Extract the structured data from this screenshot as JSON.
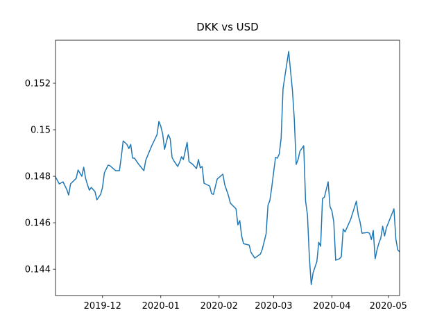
{
  "chart_data": {
    "type": "line",
    "title": "DKK vs USD",
    "x": [
      "2019-11-06",
      "2019-11-08",
      "2019-11-10",
      "2019-11-12",
      "2019-11-13",
      "2019-11-14",
      "2019-11-17",
      "2019-11-18",
      "2019-11-20",
      "2019-11-21",
      "2019-11-22",
      "2019-11-23",
      "2019-11-24",
      "2019-11-25",
      "2019-11-27",
      "2019-11-28",
      "2019-11-30",
      "2019-12-01",
      "2019-12-02",
      "2019-12-04",
      "2019-12-05",
      "2019-12-08",
      "2019-12-10",
      "2019-12-11",
      "2019-12-12",
      "2019-12-14",
      "2019-12-15",
      "2019-12-16",
      "2019-12-17",
      "2019-12-18",
      "2019-12-20",
      "2019-12-23",
      "2019-12-24",
      "2019-12-27",
      "2019-12-30",
      "2019-12-31",
      "2020-01-01",
      "2020-01-02",
      "2020-01-03",
      "2020-01-04",
      "2020-01-05",
      "2020-01-06",
      "2020-01-07",
      "2020-01-08",
      "2020-01-10",
      "2020-01-11",
      "2020-01-12",
      "2020-01-13",
      "2020-01-15",
      "2020-01-16",
      "2020-01-18",
      "2020-01-20",
      "2020-01-21",
      "2020-01-22",
      "2020-01-23",
      "2020-01-24",
      "2020-01-27",
      "2020-01-28",
      "2020-01-29",
      "2020-01-31",
      "2020-02-03",
      "2020-02-04",
      "2020-02-06",
      "2020-02-07",
      "2020-02-10",
      "2020-02-11",
      "2020-02-12",
      "2020-02-13",
      "2020-02-14",
      "2020-02-17",
      "2020-02-18",
      "2020-02-20",
      "2020-02-23",
      "2020-02-24",
      "2020-02-26",
      "2020-02-27",
      "2020-02-28",
      "2020-02-29",
      "2020-03-02",
      "2020-03-03",
      "2020-03-04",
      "2020-03-05",
      "2020-03-06",
      "2020-03-07",
      "2020-03-09",
      "2020-03-11",
      "2020-03-12",
      "2020-03-13",
      "2020-03-14",
      "2020-03-15",
      "2020-03-17",
      "2020-03-18",
      "2020-03-19",
      "2020-03-20",
      "2020-03-21",
      "2020-03-22",
      "2020-03-24",
      "2020-03-25",
      "2020-03-26",
      "2020-03-27",
      "2020-03-28",
      "2020-03-30",
      "2020-03-31",
      "2020-04-01",
      "2020-04-02",
      "2020-04-03",
      "2020-04-05",
      "2020-04-06",
      "2020-04-07",
      "2020-04-08",
      "2020-04-11",
      "2020-04-14",
      "2020-04-15",
      "2020-04-16",
      "2020-04-17",
      "2020-04-20",
      "2020-04-21",
      "2020-04-22",
      "2020-04-23",
      "2020-04-24",
      "2020-04-25",
      "2020-04-26",
      "2020-04-27",
      "2020-04-28",
      "2020-04-29",
      "2020-04-30",
      "2020-05-04",
      "2020-05-05",
      "2020-05-06",
      "2020-05-07"
    ],
    "series": [
      {
        "color": "#1f77b4",
        "values": [
          0.14797,
          0.14767,
          0.14776,
          0.14743,
          0.14719,
          0.14767,
          0.14791,
          0.14827,
          0.148,
          0.14839,
          0.14791,
          0.14764,
          0.1474,
          0.14752,
          0.14734,
          0.14699,
          0.14722,
          0.14752,
          0.14815,
          0.14848,
          0.14845,
          0.14824,
          0.14824,
          0.14884,
          0.14952,
          0.14937,
          0.14919,
          0.14937,
          0.14878,
          0.14878,
          0.14854,
          0.14824,
          0.14869,
          0.14928,
          0.14979,
          0.15036,
          0.15015,
          0.14982,
          0.14916,
          0.14949,
          0.14979,
          0.14961,
          0.14881,
          0.14866,
          0.14842,
          0.1486,
          0.14884,
          0.14872,
          0.14946,
          0.14863,
          0.14851,
          0.14833,
          0.14872,
          0.14836,
          0.14842,
          0.1477,
          0.14758,
          0.14725,
          0.14722,
          0.14788,
          0.14809,
          0.14764,
          0.14716,
          0.14684,
          0.1466,
          0.14591,
          0.14609,
          0.14543,
          0.1451,
          0.14504,
          0.14472,
          0.14448,
          0.14466,
          0.14487,
          0.14552,
          0.14675,
          0.14696,
          0.14752,
          0.14881,
          0.14878,
          0.14896,
          0.14964,
          0.15176,
          0.1523,
          0.15337,
          0.1517,
          0.15045,
          0.14851,
          0.14872,
          0.14908,
          0.14931,
          0.14693,
          0.14633,
          0.14454,
          0.14334,
          0.14385,
          0.14433,
          0.14516,
          0.14499,
          0.14704,
          0.1471,
          0.14776,
          0.14669,
          0.14651,
          0.14603,
          0.14439,
          0.14445,
          0.14454,
          0.14573,
          0.14561,
          0.14615,
          0.14693,
          0.14633,
          0.14603,
          0.14555,
          0.14558,
          0.14555,
          0.14528,
          0.14567,
          0.14445,
          0.14484,
          0.14513,
          0.14534,
          0.14585,
          0.14543,
          0.14579,
          0.1466,
          0.14531,
          0.14484,
          0.14475
        ]
      }
    ],
    "xlim": [
      "2019-11-06",
      "2020-05-07"
    ],
    "xticks": [
      {
        "value": "2019-12",
        "label": "2019-12"
      },
      {
        "value": "2020-01",
        "label": "2020-01"
      },
      {
        "value": "2020-02",
        "label": "2020-02"
      },
      {
        "value": "2020-03",
        "label": "2020-03"
      },
      {
        "value": "2020-04",
        "label": "2020-04"
      },
      {
        "value": "2020-05",
        "label": "2020-05"
      }
    ],
    "ylim": [
      0.14287,
      0.15385
    ],
    "yticks": [
      0.144,
      0.146,
      0.148,
      0.15,
      0.152
    ],
    "grid": false
  }
}
